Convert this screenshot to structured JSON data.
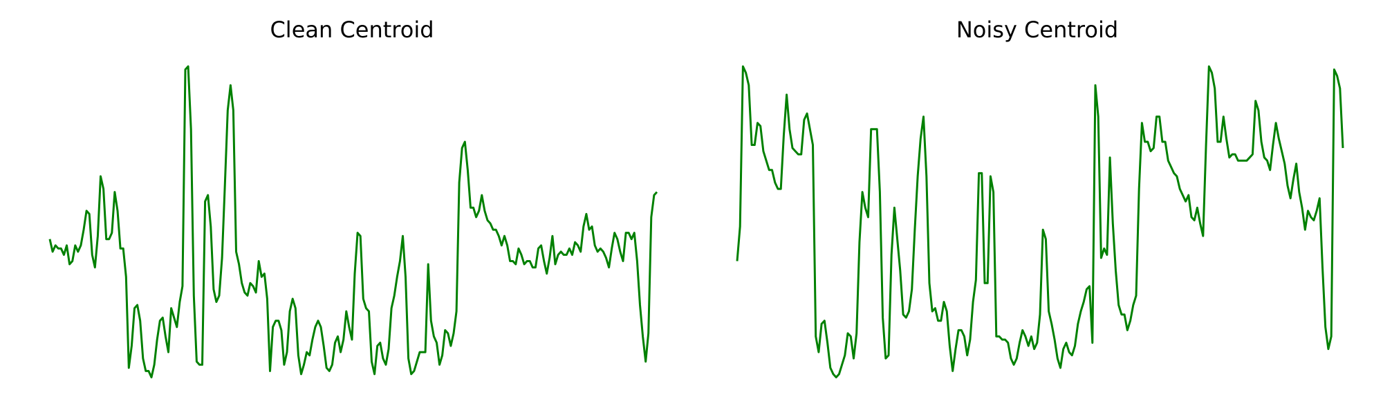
{
  "colors": {
    "line": "#008000",
    "background": "#ffffff"
  },
  "chart_data": [
    {
      "type": "line",
      "title": "Clean Centroid",
      "xlabel": "",
      "ylabel": "",
      "axes_visible": false,
      "grid": false,
      "ylim": [
        0,
        1
      ],
      "series": [
        {
          "values": [
            0.45,
            0.41,
            0.43,
            0.42,
            0.42,
            0.4,
            0.43,
            0.37,
            0.38,
            0.43,
            0.41,
            0.43,
            0.48,
            0.54,
            0.53,
            0.4,
            0.36,
            0.46,
            0.65,
            0.61,
            0.45,
            0.45,
            0.47,
            0.6,
            0.54,
            0.42,
            0.42,
            0.33,
            0.04,
            0.11,
            0.23,
            0.24,
            0.19,
            0.07,
            0.03,
            0.03,
            0.01,
            0.05,
            0.13,
            0.19,
            0.2,
            0.14,
            0.09,
            0.23,
            0.2,
            0.17,
            0.25,
            0.3,
            0.99,
            1.0,
            0.8,
            0.27,
            0.06,
            0.05,
            0.05,
            0.57,
            0.59,
            0.49,
            0.29,
            0.25,
            0.27,
            0.39,
            0.62,
            0.86,
            0.94,
            0.86,
            0.41,
            0.37,
            0.31,
            0.28,
            0.27,
            0.31,
            0.3,
            0.28,
            0.38,
            0.33,
            0.34,
            0.26,
            0.03,
            0.17,
            0.19,
            0.19,
            0.16,
            0.05,
            0.09,
            0.22,
            0.26,
            0.23,
            0.08,
            0.02,
            0.05,
            0.09,
            0.08,
            0.13,
            0.17,
            0.19,
            0.17,
            0.11,
            0.04,
            0.03,
            0.05,
            0.12,
            0.14,
            0.09,
            0.13,
            0.22,
            0.17,
            0.13,
            0.34,
            0.47,
            0.46,
            0.26,
            0.23,
            0.22,
            0.06,
            0.02,
            0.11,
            0.12,
            0.07,
            0.05,
            0.1,
            0.23,
            0.27,
            0.33,
            0.38,
            0.46,
            0.33,
            0.07,
            0.02,
            0.03,
            0.06,
            0.09,
            0.09,
            0.09,
            0.37,
            0.19,
            0.14,
            0.12,
            0.05,
            0.08,
            0.16,
            0.15,
            0.11,
            0.15,
            0.22,
            0.63,
            0.74,
            0.76,
            0.67,
            0.55,
            0.55,
            0.52,
            0.54,
            0.59,
            0.54,
            0.51,
            0.5,
            0.48,
            0.48,
            0.46,
            0.43,
            0.46,
            0.43,
            0.38,
            0.38,
            0.37,
            0.42,
            0.4,
            0.37,
            0.38,
            0.38,
            0.36,
            0.36,
            0.42,
            0.43,
            0.38,
            0.34,
            0.39,
            0.46,
            0.37,
            0.4,
            0.41,
            0.4,
            0.4,
            0.42,
            0.4,
            0.44,
            0.43,
            0.41,
            0.49,
            0.53,
            0.48,
            0.49,
            0.43,
            0.41,
            0.42,
            0.41,
            0.39,
            0.36,
            0.42,
            0.47,
            0.45,
            0.41,
            0.38,
            0.47,
            0.47,
            0.45,
            0.47,
            0.38,
            0.24,
            0.14,
            0.06,
            0.15,
            0.52,
            0.59,
            0.6
          ]
        }
      ]
    },
    {
      "type": "line",
      "title": "Noisy Centroid",
      "xlabel": "",
      "ylabel": "",
      "axes_visible": false,
      "grid": false,
      "ylim": [
        0,
        1
      ],
      "series": [
        {
          "values": [
            0.38,
            0.49,
            1.0,
            0.98,
            0.94,
            0.75,
            0.75,
            0.82,
            0.81,
            0.73,
            0.7,
            0.67,
            0.67,
            0.63,
            0.61,
            0.61,
            0.78,
            0.91,
            0.8,
            0.74,
            0.73,
            0.72,
            0.72,
            0.83,
            0.85,
            0.8,
            0.75,
            0.14,
            0.09,
            0.18,
            0.19,
            0.12,
            0.04,
            0.02,
            0.01,
            0.02,
            0.05,
            0.08,
            0.15,
            0.14,
            0.07,
            0.15,
            0.44,
            0.6,
            0.55,
            0.52,
            0.8,
            0.8,
            0.8,
            0.6,
            0.2,
            0.07,
            0.08,
            0.4,
            0.55,
            0.45,
            0.35,
            0.21,
            0.2,
            0.22,
            0.29,
            0.48,
            0.65,
            0.77,
            0.84,
            0.65,
            0.31,
            0.22,
            0.23,
            0.19,
            0.19,
            0.25,
            0.22,
            0.11,
            0.03,
            0.1,
            0.16,
            0.16,
            0.14,
            0.08,
            0.13,
            0.25,
            0.32,
            0.66,
            0.66,
            0.31,
            0.31,
            0.65,
            0.6,
            0.14,
            0.14,
            0.13,
            0.13,
            0.12,
            0.07,
            0.05,
            0.07,
            0.12,
            0.16,
            0.14,
            0.11,
            0.14,
            0.1,
            0.12,
            0.21,
            0.48,
            0.45,
            0.22,
            0.18,
            0.13,
            0.07,
            0.04,
            0.1,
            0.12,
            0.09,
            0.08,
            0.11,
            0.18,
            0.22,
            0.25,
            0.29,
            0.3,
            0.12,
            0.94,
            0.84,
            0.39,
            0.42,
            0.4,
            0.71,
            0.5,
            0.35,
            0.24,
            0.21,
            0.21,
            0.16,
            0.19,
            0.24,
            0.27,
            0.61,
            0.82,
            0.76,
            0.76,
            0.73,
            0.74,
            0.84,
            0.84,
            0.76,
            0.76,
            0.7,
            0.68,
            0.66,
            0.65,
            0.61,
            0.59,
            0.57,
            0.59,
            0.52,
            0.51,
            0.55,
            0.5,
            0.46,
            0.75,
            1.0,
            0.98,
            0.93,
            0.76,
            0.76,
            0.84,
            0.77,
            0.71,
            0.72,
            0.72,
            0.7,
            0.7,
            0.7,
            0.7,
            0.71,
            0.72,
            0.89,
            0.86,
            0.76,
            0.71,
            0.7,
            0.67,
            0.75,
            0.82,
            0.77,
            0.73,
            0.69,
            0.62,
            0.58,
            0.64,
            0.69,
            0.6,
            0.55,
            0.48,
            0.54,
            0.52,
            0.51,
            0.54,
            0.58,
            0.36,
            0.17,
            0.1,
            0.14,
            0.99,
            0.97,
            0.93,
            0.74
          ]
        }
      ]
    }
  ]
}
